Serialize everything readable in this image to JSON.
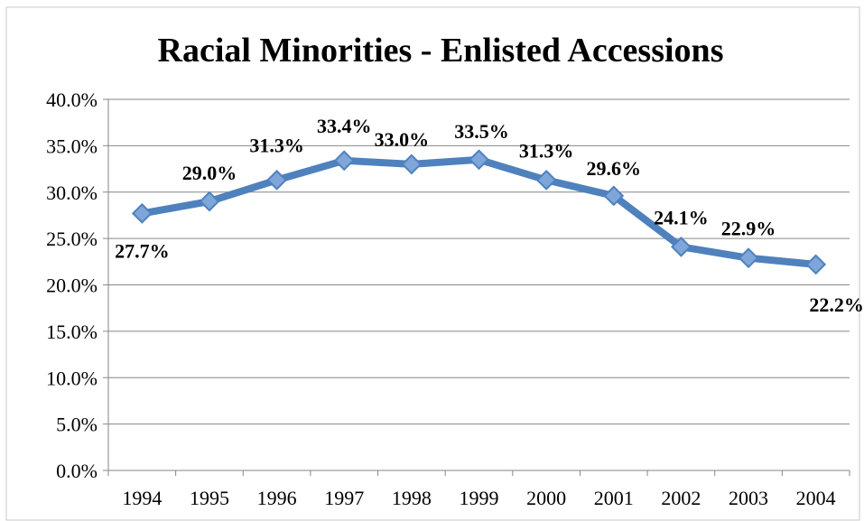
{
  "chart_data": {
    "type": "line",
    "title": "Racial Minorities - Enlisted Accessions",
    "xlabel": "",
    "ylabel": "",
    "categories": [
      "1994",
      "1995",
      "1996",
      "1997",
      "1998",
      "1999",
      "2000",
      "2001",
      "2002",
      "2003",
      "2004"
    ],
    "series": [
      {
        "values": [
          27.7,
          29.0,
          31.3,
          33.4,
          33.0,
          33.5,
          31.3,
          29.6,
          24.1,
          22.9,
          22.2
        ],
        "labels": [
          "27.7%",
          "29.0%",
          "31.3%",
          "33.4%",
          "33.0%",
          "33.5%",
          "31.3%",
          "29.6%",
          "24.1%",
          "22.9%",
          "22.2%"
        ],
        "color": "#4f81bd"
      }
    ],
    "ylim": [
      0,
      40
    ],
    "yticks": [
      "0.0%",
      "5.0%",
      "10.0%",
      "15.0%",
      "20.0%",
      "25.0%",
      "30.0%",
      "35.0%",
      "40.0%"
    ],
    "grid": true,
    "legend": "none",
    "marker": "diamond"
  }
}
